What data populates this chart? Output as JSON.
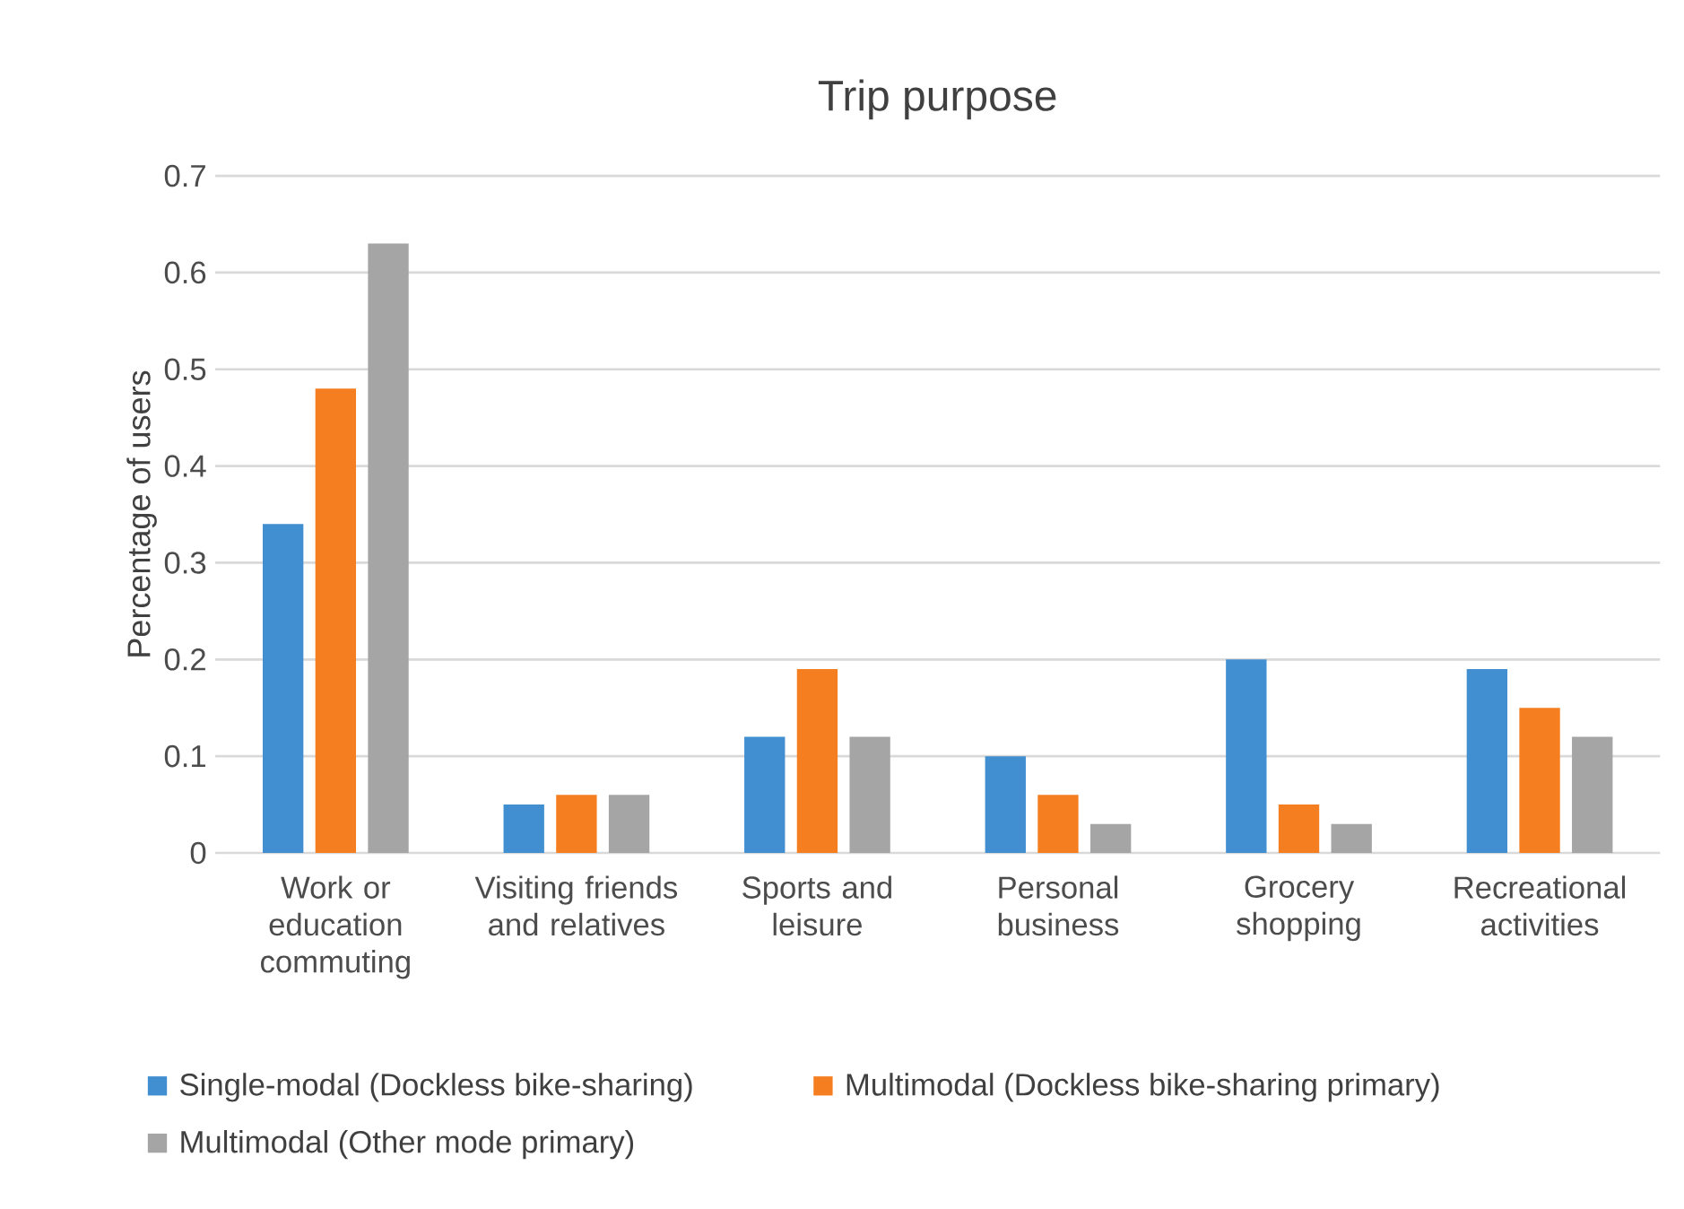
{
  "chart_data": {
    "type": "bar",
    "title": "Trip purpose",
    "ylabel": "Percentage of users",
    "categories": [
      "Work or education commuting",
      "Visiting friends and relatives",
      "Sports and leisure",
      "Personal business",
      "Grocery shopping",
      "Recreational activities"
    ],
    "series": [
      {
        "name": "Single-modal (Dockless bike-sharing)",
        "color": "#418fd0",
        "values": [
          0.34,
          0.05,
          0.12,
          0.1,
          0.2,
          0.19
        ]
      },
      {
        "name": "Multimodal (Dockless bike-sharing primary)",
        "color": "#f57f20",
        "values": [
          0.48,
          0.06,
          0.19,
          0.06,
          0.05,
          0.15
        ]
      },
      {
        "name": "Multimodal (Other mode primary)",
        "color": "#a5a5a5",
        "values": [
          0.63,
          0.06,
          0.12,
          0.03,
          0.03,
          0.12
        ]
      }
    ],
    "ylim": [
      0,
      0.7
    ],
    "yticks": [
      0,
      0.1,
      0.2,
      0.3,
      0.4,
      0.5,
      0.6,
      0.7
    ],
    "grid": "y",
    "legend": "bottom"
  }
}
